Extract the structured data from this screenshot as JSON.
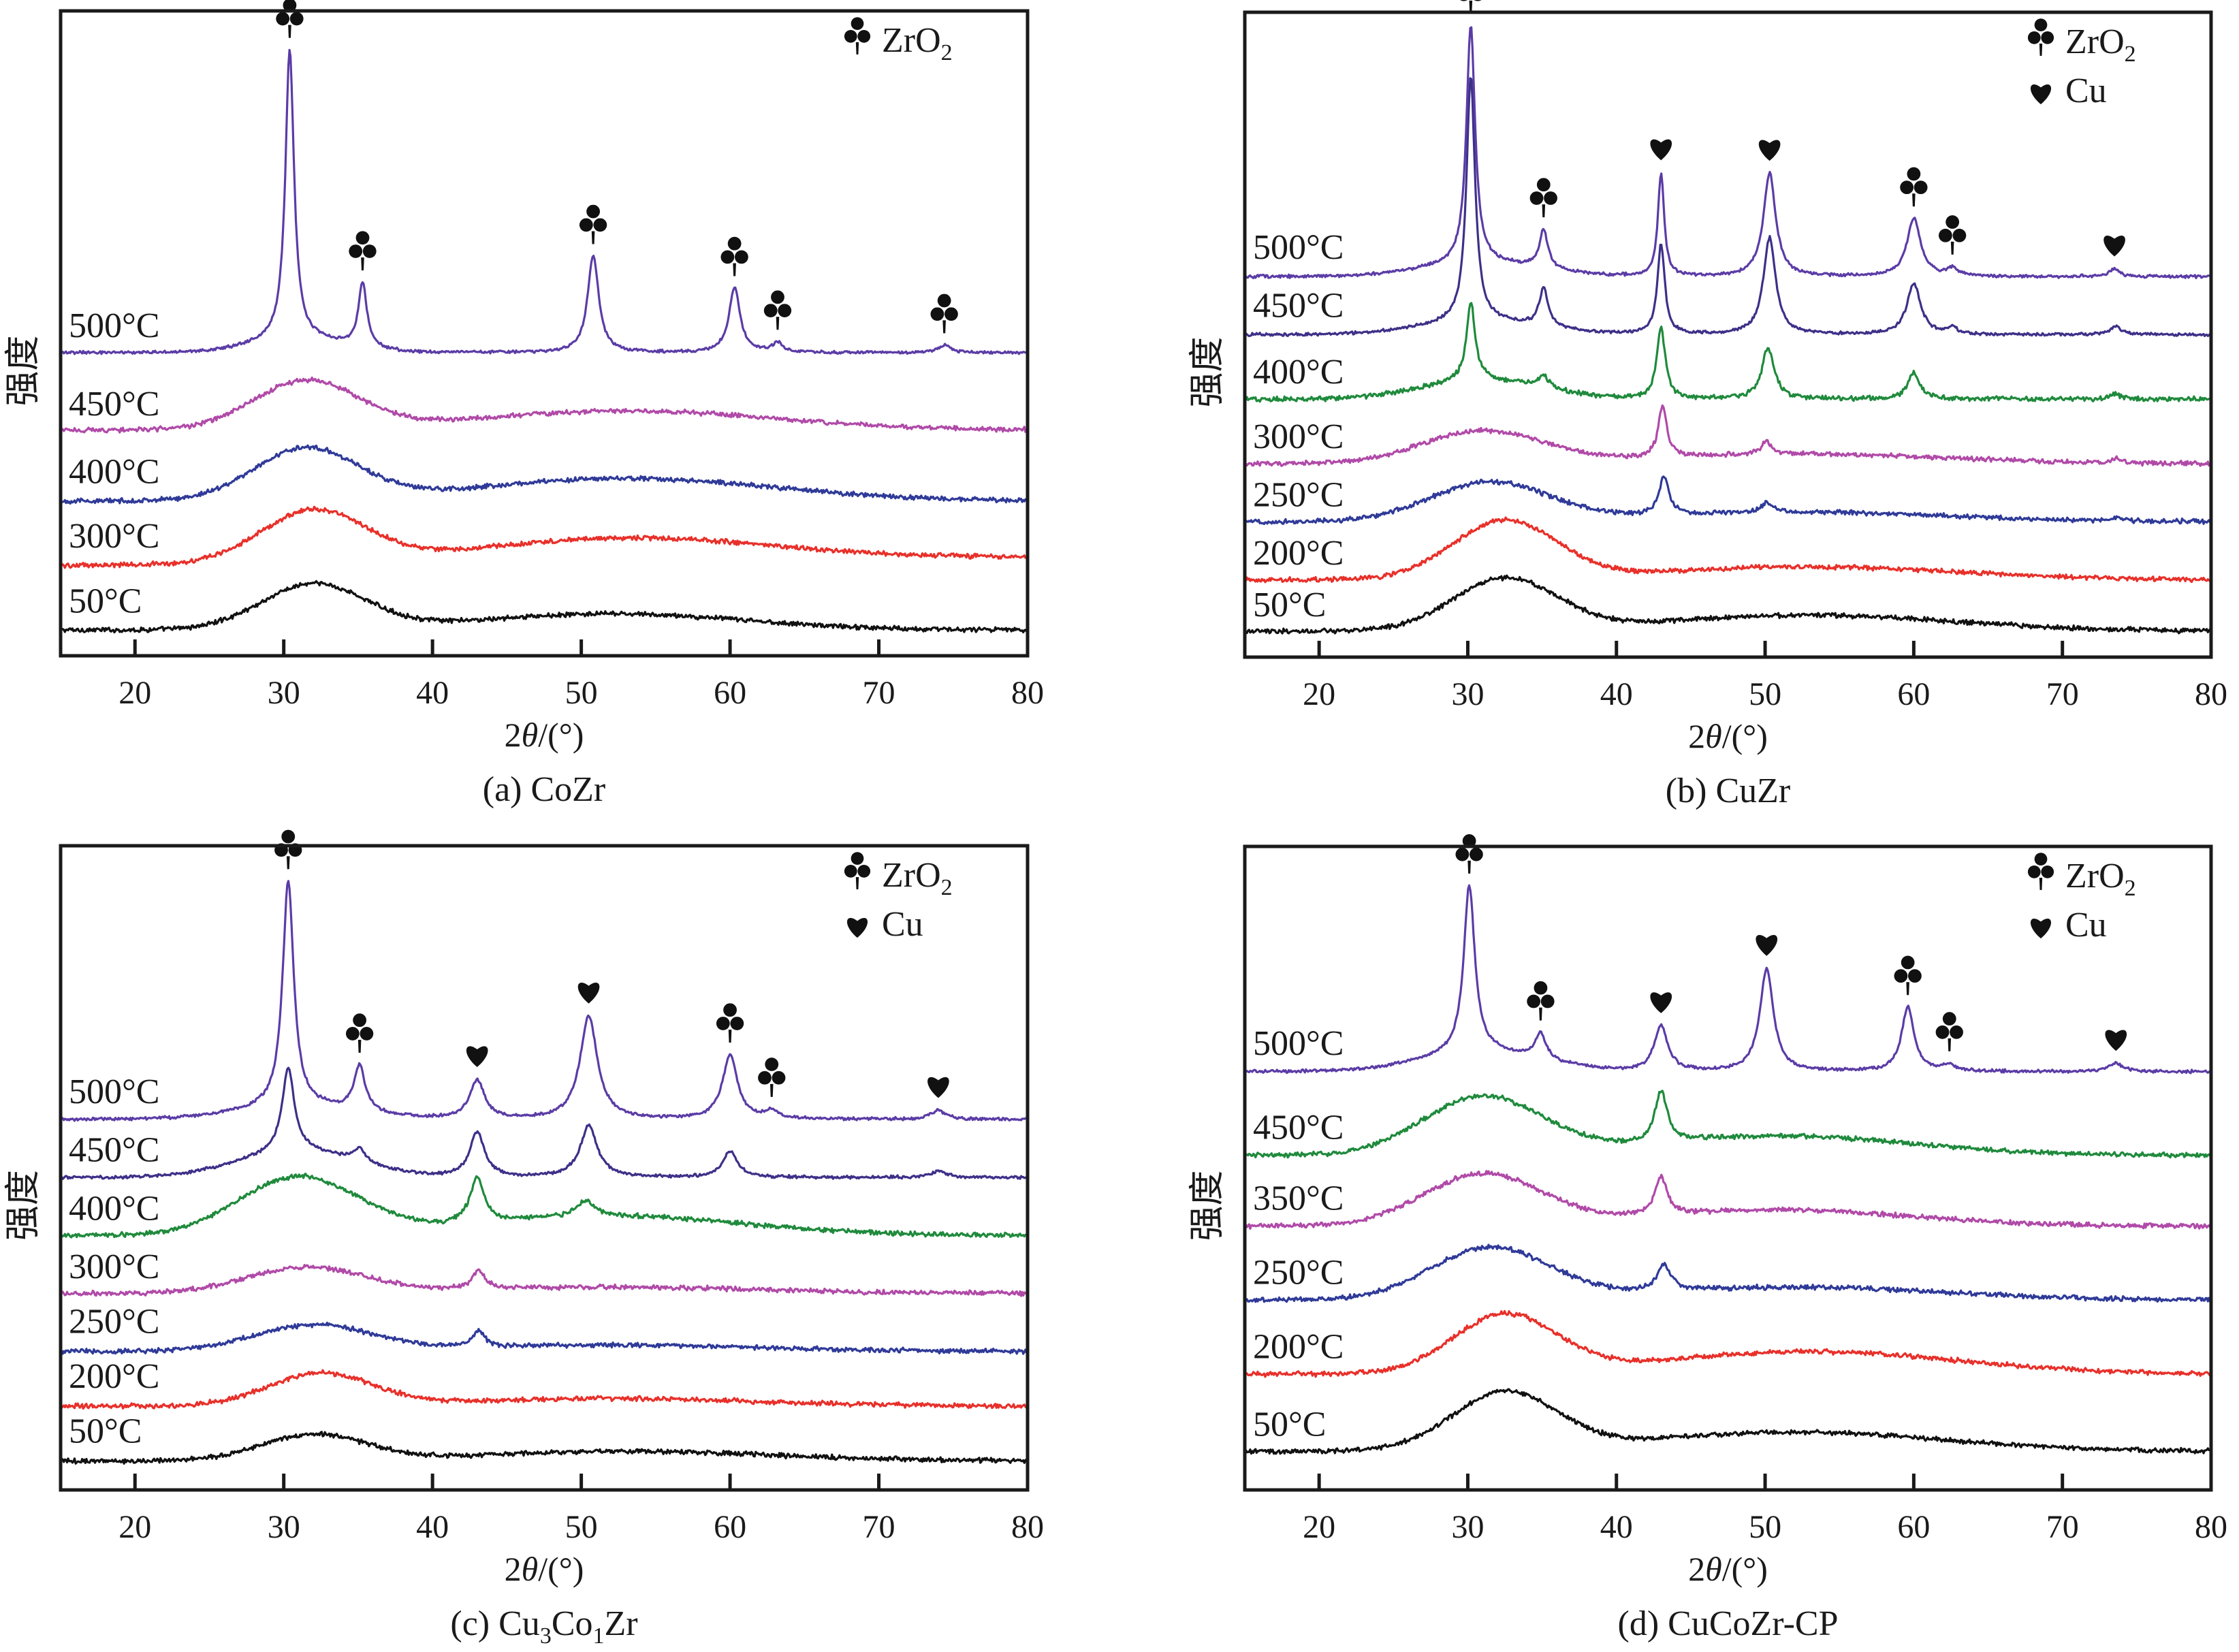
{
  "figure": {
    "ylabel": "强度",
    "xlabel_prefix": "2",
    "xlabel_theta": "θ",
    "xlabel_suffix": "/(°)"
  },
  "legend_labels": {
    "zro2_main": "ZrO",
    "zro2_sub": "2",
    "cu": "Cu",
    "club_glyph": "♣",
    "heart_glyph": "♥"
  },
  "colors": {
    "500": "#5b3ca6",
    "450_purple": "#3d3088",
    "450_magenta": "#b04aa8",
    "400_blue": "#2f3a98",
    "400_green": "#1f8a3c",
    "350": "#b04aa8",
    "300_red": "#e8302a",
    "300_magenta": "#b04aa8",
    "250": "#2f3a98",
    "200": "#e8302a",
    "50": "#111111"
  },
  "chart_data": [
    {
      "type": "line",
      "id": "a",
      "caption_prefix": "(a) ",
      "caption_parts": [
        {
          "t": "CoZr"
        }
      ],
      "xlabel": "2θ/(°)",
      "ylabel": "强度",
      "xlim": [
        15,
        80
      ],
      "ylim": [
        0,
        100
      ],
      "xticks": [
        20,
        30,
        40,
        50,
        60,
        70,
        80
      ],
      "legend": [
        {
          "glyph": "club",
          "label": "ZrO2"
        }
      ],
      "legend_placement": "top-right",
      "series": [
        {
          "name": "50°C",
          "color_key": "50",
          "offset": 4,
          "slope": 0.0,
          "humps": [
            {
              "x": 32,
              "h": 7,
              "w": 3.5
            },
            {
              "x": 52,
              "h": 2.5,
              "w": 9
            }
          ],
          "peaks": []
        },
        {
          "name": "300°C",
          "color_key": "300_red",
          "offset": 14,
          "slope": 0.02,
          "humps": [
            {
              "x": 32,
              "h": 8,
              "w": 3.5
            },
            {
              "x": 53,
              "h": 3.5,
              "w": 10
            }
          ],
          "peaks": []
        },
        {
          "name": "400°C",
          "color_key": "400_blue",
          "offset": 24,
          "slope": 0.0,
          "humps": [
            {
              "x": 31.5,
              "h": 8,
              "w": 3.5
            },
            {
              "x": 53,
              "h": 3.5,
              "w": 10
            }
          ],
          "peaks": []
        },
        {
          "name": "450°C",
          "color_key": "450_magenta",
          "offset": 35,
          "slope": 0.0,
          "humps": [
            {
              "x": 31.5,
              "h": 7.5,
              "w": 3.5
            },
            {
              "x": 53,
              "h": 3,
              "w": 10
            }
          ],
          "peaks": []
        },
        {
          "name": "500°C",
          "color_key": "500",
          "offset": 47,
          "slope": 0.0,
          "humps": [
            {
              "x": 31,
              "h": 2,
              "w": 3
            }
          ],
          "peaks": [
            {
              "x": 30.4,
              "h": 45,
              "w": 0.35,
              "marker": "club"
            },
            {
              "x": 35.3,
              "h": 10,
              "w": 0.35,
              "marker": "club"
            },
            {
              "x": 50.8,
              "h": 15,
              "w": 0.45,
              "marker": "club"
            },
            {
              "x": 60.3,
              "h": 10,
              "w": 0.45,
              "marker": "club"
            },
            {
              "x": 63.2,
              "h": 1.5,
              "w": 0.4,
              "marker": "club"
            },
            {
              "x": 74.4,
              "h": 1.2,
              "w": 0.5,
              "marker": "club"
            }
          ]
        }
      ]
    },
    {
      "type": "line",
      "id": "b",
      "caption_prefix": "(b) ",
      "caption_parts": [
        {
          "t": "CuZr"
        }
      ],
      "xlabel": "2θ/(°)",
      "ylabel": "强度",
      "xlim": [
        15,
        80
      ],
      "ylim": [
        0,
        100
      ],
      "xticks": [
        20,
        30,
        40,
        50,
        60,
        70,
        80
      ],
      "legend": [
        {
          "glyph": "club",
          "label": "ZrO2"
        },
        {
          "glyph": "heart",
          "label": "Cu"
        }
      ],
      "legend_placement": "top-right",
      "series": [
        {
          "name": "50°C",
          "color_key": "50",
          "offset": 4,
          "slope": 0.0,
          "humps": [
            {
              "x": 32.5,
              "h": 8,
              "w": 3.5
            },
            {
              "x": 53,
              "h": 2.5,
              "w": 10
            }
          ],
          "peaks": []
        },
        {
          "name": "200°C",
          "color_key": "200",
          "offset": 12,
          "slope": 0.0,
          "humps": [
            {
              "x": 32.5,
              "h": 9,
              "w": 3.5
            },
            {
              "x": 53,
              "h": 2,
              "w": 10
            }
          ],
          "peaks": []
        },
        {
          "name": "250°C",
          "color_key": "250",
          "offset": 21,
          "slope": 0.0,
          "humps": [
            {
              "x": 31.5,
              "h": 6,
              "w": 4
            },
            {
              "x": 52,
              "h": 1.5,
              "w": 10
            }
          ],
          "peaks": [
            {
              "x": 43.2,
              "h": 6,
              "w": 0.4
            },
            {
              "x": 50.2,
              "h": 1.5,
              "w": 0.5
            },
            {
              "x": 73.8,
              "h": 0.6,
              "w": 0.4
            }
          ]
        },
        {
          "name": "300°C",
          "color_key": "300_magenta",
          "offset": 30,
          "slope": 0.0,
          "humps": [
            {
              "x": 31,
              "h": 5,
              "w": 4
            },
            {
              "x": 52,
              "h": 1.5,
              "w": 10
            }
          ],
          "peaks": [
            {
              "x": 43.1,
              "h": 8,
              "w": 0.35
            },
            {
              "x": 50.1,
              "h": 2,
              "w": 0.4
            },
            {
              "x": 73.6,
              "h": 0.7,
              "w": 0.4
            }
          ]
        },
        {
          "name": "400°C",
          "color_key": "400_green",
          "offset": 40,
          "slope": 0.0,
          "humps": [
            {
              "x": 31,
              "h": 3,
              "w": 4
            }
          ],
          "peaks": [
            {
              "x": 30.2,
              "h": 12,
              "w": 0.35
            },
            {
              "x": 35.1,
              "h": 2,
              "w": 0.4
            },
            {
              "x": 43.0,
              "h": 11,
              "w": 0.35
            },
            {
              "x": 50.2,
              "h": 8,
              "w": 0.5
            },
            {
              "x": 60.0,
              "h": 4,
              "w": 0.5
            },
            {
              "x": 73.6,
              "h": 0.8,
              "w": 0.4
            }
          ]
        },
        {
          "name": "450°C",
          "color_key": "450_purple",
          "offset": 50,
          "slope": 0.0,
          "humps": [
            {
              "x": 31,
              "h": 2,
              "w": 4
            }
          ],
          "peaks": [
            {
              "x": 30.2,
              "h": 38,
              "w": 0.35
            },
            {
              "x": 35.1,
              "h": 6,
              "w": 0.35
            },
            {
              "x": 43.0,
              "h": 14,
              "w": 0.3
            },
            {
              "x": 50.3,
              "h": 15,
              "w": 0.5
            },
            {
              "x": 60.0,
              "h": 8,
              "w": 0.55
            },
            {
              "x": 62.6,
              "h": 1,
              "w": 0.4
            },
            {
              "x": 73.6,
              "h": 1.2,
              "w": 0.5
            }
          ]
        },
        {
          "name": "500°C",
          "color_key": "500",
          "offset": 59,
          "slope": 0.0,
          "humps": [
            {
              "x": 31,
              "h": 2,
              "w": 4
            }
          ],
          "peaks": [
            {
              "x": 30.2,
              "h": 37,
              "w": 0.35,
              "marker": "club"
            },
            {
              "x": 35.1,
              "h": 6,
              "w": 0.35,
              "marker": "club"
            },
            {
              "x": 43.0,
              "h": 16,
              "w": 0.25,
              "marker": "heart"
            },
            {
              "x": 50.3,
              "h": 16,
              "w": 0.5,
              "marker": "heart"
            },
            {
              "x": 60.0,
              "h": 9,
              "w": 0.55,
              "marker": "club"
            },
            {
              "x": 62.6,
              "h": 1.2,
              "w": 0.4,
              "marker": "club"
            },
            {
              "x": 73.5,
              "h": 1.2,
              "w": 0.4,
              "marker": "heart"
            }
          ]
        }
      ]
    },
    {
      "type": "line",
      "id": "c",
      "caption_prefix": "(c) ",
      "caption_parts": [
        {
          "t": "Cu"
        },
        {
          "t": "3",
          "sub": true
        },
        {
          "t": "Co"
        },
        {
          "t": "1",
          "sub": true
        },
        {
          "t": "Zr"
        }
      ],
      "xlabel": "2θ/(°)",
      "ylabel": "强度",
      "xlim": [
        15,
        80
      ],
      "ylim": [
        0,
        100
      ],
      "xticks": [
        20,
        30,
        40,
        50,
        60,
        70,
        80
      ],
      "legend": [
        {
          "glyph": "club",
          "label": "ZrO2"
        },
        {
          "glyph": "heart",
          "label": "Cu"
        }
      ],
      "legend_placement": "top-right",
      "series": [
        {
          "name": "50°C",
          "color_key": "50",
          "offset": 4.5,
          "slope": 0.0,
          "humps": [
            {
              "x": 32,
              "h": 4,
              "w": 3.5
            },
            {
              "x": 53,
              "h": 1.5,
              "w": 10
            }
          ],
          "peaks": []
        },
        {
          "name": "200°C",
          "color_key": "200",
          "offset": 13,
          "slope": 0.0,
          "humps": [
            {
              "x": 32.5,
              "h": 5,
              "w": 3.5
            },
            {
              "x": 52,
              "h": 1.2,
              "w": 10
            }
          ],
          "peaks": []
        },
        {
          "name": "250°C",
          "color_key": "250",
          "offset": 21.5,
          "slope": 0.0,
          "humps": [
            {
              "x": 32,
              "h": 4,
              "w": 4
            },
            {
              "x": 52,
              "h": 1,
              "w": 10
            }
          ],
          "peaks": [
            {
              "x": 43.1,
              "h": 2.5,
              "w": 0.5
            }
          ]
        },
        {
          "name": "300°C",
          "color_key": "300_magenta",
          "offset": 30.5,
          "slope": 0.0,
          "humps": [
            {
              "x": 31.5,
              "h": 4,
              "w": 4
            },
            {
              "x": 52,
              "h": 1,
              "w": 10
            }
          ],
          "peaks": [
            {
              "x": 43.1,
              "h": 3,
              "w": 0.5
            }
          ]
        },
        {
          "name": "400°C",
          "color_key": "400_green",
          "offset": 39.5,
          "slope": 0.0,
          "humps": [
            {
              "x": 31,
              "h": 9,
              "w": 4
            },
            {
              "x": 52,
              "h": 3,
              "w": 9
            }
          ],
          "peaks": [
            {
              "x": 43.0,
              "h": 7,
              "w": 0.6
            },
            {
              "x": 50.3,
              "h": 2.5,
              "w": 0.7
            }
          ]
        },
        {
          "name": "450°C",
          "color_key": "450_purple",
          "offset": 48.5,
          "slope": 0.0,
          "humps": [
            {
              "x": 31,
              "h": 4,
              "w": 4
            }
          ],
          "peaks": [
            {
              "x": 30.3,
              "h": 13,
              "w": 0.5
            },
            {
              "x": 35.1,
              "h": 2,
              "w": 0.5
            },
            {
              "x": 43.0,
              "h": 7,
              "w": 0.6
            },
            {
              "x": 50.5,
              "h": 8,
              "w": 0.7
            },
            {
              "x": 60.0,
              "h": 4,
              "w": 0.6
            },
            {
              "x": 74.0,
              "h": 1,
              "w": 0.6
            }
          ]
        },
        {
          "name": "500°C",
          "color_key": "500",
          "offset": 57.5,
          "slope": 0.0,
          "humps": [
            {
              "x": 31,
              "h": 2,
              "w": 4
            }
          ],
          "peaks": [
            {
              "x": 30.3,
              "h": 35,
              "w": 0.45,
              "marker": "club"
            },
            {
              "x": 35.1,
              "h": 7,
              "w": 0.45,
              "marker": "club"
            },
            {
              "x": 43.0,
              "h": 6,
              "w": 0.6,
              "marker": "heart"
            },
            {
              "x": 50.5,
              "h": 16,
              "w": 0.7,
              "marker": "heart"
            },
            {
              "x": 60.0,
              "h": 10,
              "w": 0.6,
              "marker": "club"
            },
            {
              "x": 62.8,
              "h": 1.2,
              "w": 0.5,
              "marker": "club"
            },
            {
              "x": 74.0,
              "h": 1.4,
              "w": 0.6,
              "marker": "heart"
            }
          ]
        }
      ]
    },
    {
      "type": "line",
      "id": "d",
      "caption_prefix": "(d) ",
      "caption_parts": [
        {
          "t": "CuCoZr-CP"
        }
      ],
      "xlabel": "2θ/(°)",
      "ylabel": "强度",
      "xlim": [
        15,
        80
      ],
      "ylim": [
        0,
        100
      ],
      "xticks": [
        20,
        30,
        40,
        50,
        60,
        70,
        80
      ],
      "legend": [
        {
          "glyph": "club",
          "label": "ZrO2"
        },
        {
          "glyph": "heart",
          "label": "Cu"
        }
      ],
      "legend_placement": "top-right",
      "series": [
        {
          "name": "50°C",
          "color_key": "50",
          "offset": 6,
          "slope": 0.0,
          "humps": [
            {
              "x": 32.5,
              "h": 9,
              "w": 3.5
            },
            {
              "x": 52,
              "h": 3,
              "w": 10
            }
          ],
          "peaks": []
        },
        {
          "name": "200°C",
          "color_key": "200",
          "offset": 18,
          "slope": 0.0,
          "humps": [
            {
              "x": 32.5,
              "h": 9,
              "w": 3.5
            },
            {
              "x": 53,
              "h": 3.5,
              "w": 10
            }
          ],
          "peaks": []
        },
        {
          "name": "250°C",
          "color_key": "250",
          "offset": 29.5,
          "slope": 0.0,
          "humps": [
            {
              "x": 31.5,
              "h": 8,
              "w": 4
            },
            {
              "x": 52,
              "h": 2,
              "w": 10
            }
          ],
          "peaks": [
            {
              "x": 43.2,
              "h": 4,
              "w": 0.6
            }
          ]
        },
        {
          "name": "350°C",
          "color_key": "350",
          "offset": 41,
          "slope": 0.0,
          "humps": [
            {
              "x": 31,
              "h": 8,
              "w": 4
            },
            {
              "x": 51,
              "h": 2.5,
              "w": 9
            }
          ],
          "peaks": [
            {
              "x": 43.0,
              "h": 6,
              "w": 0.5
            }
          ]
        },
        {
          "name": "450°C",
          "color_key": "400_green",
          "offset": 52,
          "slope": 0.0,
          "humps": [
            {
              "x": 31,
              "h": 9,
              "w": 4
            },
            {
              "x": 51,
              "h": 3,
              "w": 9
            }
          ],
          "peaks": [
            {
              "x": 43.0,
              "h": 8,
              "w": 0.5
            }
          ]
        },
        {
          "name": "500°C",
          "color_key": "500",
          "offset": 65,
          "slope": 0.0,
          "humps": [
            {
              "x": 31,
              "h": 3,
              "w": 4
            }
          ],
          "peaks": [
            {
              "x": 30.1,
              "h": 26,
              "w": 0.45,
              "marker": "club"
            },
            {
              "x": 34.9,
              "h": 4,
              "w": 0.45,
              "marker": "club"
            },
            {
              "x": 43.0,
              "h": 7,
              "w": 0.55,
              "marker": "heart"
            },
            {
              "x": 50.1,
              "h": 16,
              "w": 0.55,
              "marker": "heart"
            },
            {
              "x": 59.6,
              "h": 10,
              "w": 0.5,
              "marker": "club"
            },
            {
              "x": 62.4,
              "h": 1,
              "w": 0.5,
              "marker": "club"
            },
            {
              "x": 73.6,
              "h": 1.3,
              "w": 0.6,
              "marker": "heart"
            }
          ]
        }
      ]
    }
  ]
}
